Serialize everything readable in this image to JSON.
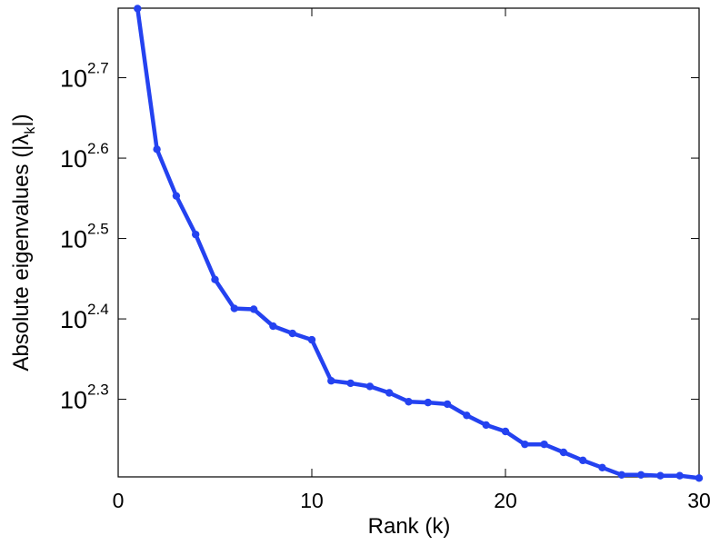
{
  "chart_data": {
    "type": "line",
    "title": "",
    "xlabel": "Rank (k)",
    "ylabel": "Absolute eigenvalues (|λ_k|)",
    "ylabel_parts": {
      "main": "Absolute eigenvalues (|λ",
      "sub": "k",
      "close": "|)"
    },
    "x_scale": "linear",
    "y_scale": "log10",
    "xlim": [
      0,
      30
    ],
    "ylim_log10": [
      2.2035,
      2.7865
    ],
    "x_ticks": [
      0,
      10,
      20,
      30
    ],
    "x_tick_labels": [
      "0",
      "10",
      "20",
      "30"
    ],
    "y_ticks_log10": [
      2.3,
      2.4,
      2.5,
      2.6,
      2.7
    ],
    "y_tick_labels": [
      {
        "base": "10",
        "exp": "2.3"
      },
      {
        "base": "10",
        "exp": "2.4"
      },
      {
        "base": "10",
        "exp": "2.5"
      },
      {
        "base": "10",
        "exp": "2.6"
      },
      {
        "base": "10",
        "exp": "2.7"
      }
    ],
    "grid": false,
    "series": [
      {
        "color": "#2442f0",
        "x": [
          1,
          2,
          3,
          4,
          5,
          6,
          7,
          8,
          9,
          10,
          11,
          12,
          13,
          14,
          15,
          16,
          17,
          18,
          19,
          20,
          21,
          22,
          23,
          24,
          25,
          26,
          27,
          28,
          29,
          30
        ],
        "log10_y": [
          2.786,
          2.611,
          2.553,
          2.505,
          2.449,
          2.413,
          2.412,
          2.391,
          2.382,
          2.374,
          2.323,
          2.32,
          2.316,
          2.308,
          2.297,
          2.296,
          2.294,
          2.28,
          2.268,
          2.26,
          2.244,
          2.244,
          2.234,
          2.224,
          2.215,
          2.206,
          2.206,
          2.205,
          2.205,
          2.202
        ],
        "values": [
          611,
          408,
          357,
          320,
          281,
          259,
          258,
          246,
          241,
          237,
          210,
          209,
          207,
          203,
          198,
          198,
          197,
          191,
          185,
          182,
          175,
          175,
          171,
          167,
          164,
          161,
          161,
          160,
          160,
          159
        ]
      }
    ]
  }
}
